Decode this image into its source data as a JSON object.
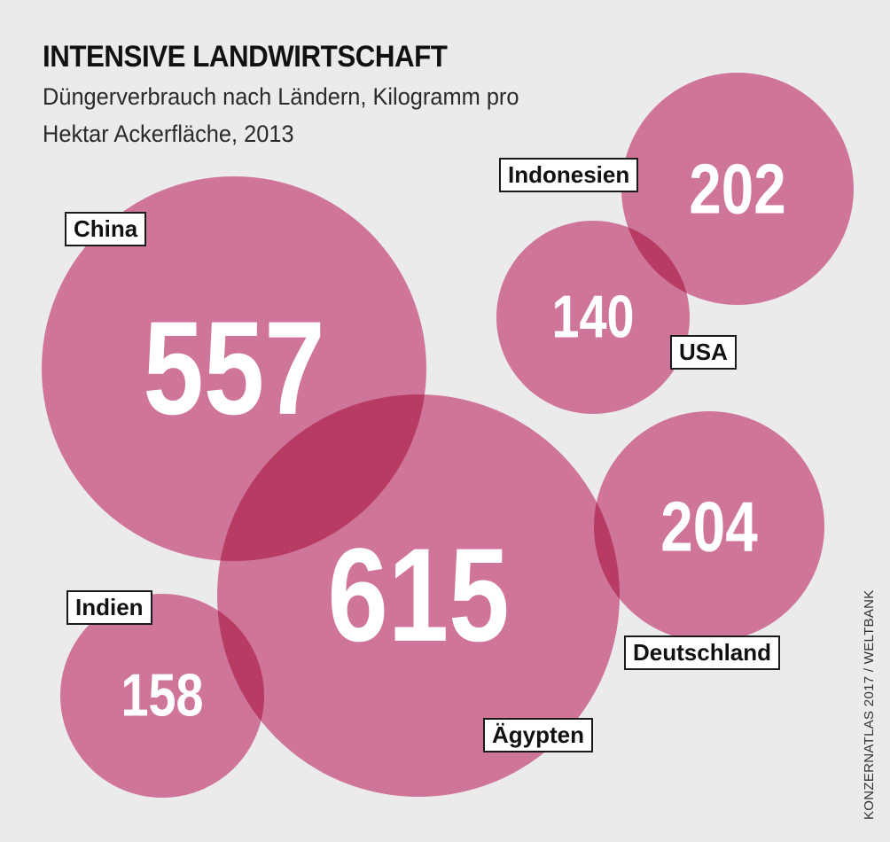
{
  "chart_data": {
    "type": "bubble",
    "title": "INTENSIVE LANDWIRTSCHAFT",
    "subtitle": "Düngerverbrauch nach Ländern, Kilogramm pro Hektar Ackerfläche, 2013",
    "unit": "kg/ha",
    "categories": [
      "China",
      "Ägypten",
      "Indonesien",
      "USA",
      "Deutschland",
      "Indien"
    ],
    "values": [
      557,
      615,
      202,
      140,
      204,
      158
    ],
    "points": [
      {
        "country": "China",
        "value": 557,
        "value_text": "557"
      },
      {
        "country": "Ägypten",
        "value": 615,
        "value_text": "615"
      },
      {
        "country": "Indonesien",
        "value": 202,
        "value_text": "202"
      },
      {
        "country": "USA",
        "value": 140,
        "value_text": "140"
      },
      {
        "country": "Deutschland",
        "value": 204,
        "value_text": "204"
      },
      {
        "country": "Indien",
        "value": 158,
        "value_text": "158"
      }
    ],
    "bubble_color": "#e27fa6",
    "legend": "none",
    "grid": false
  },
  "source": "KONZERNATLAS 2017 / WELTBANK",
  "colors": {
    "background": "#ebebec",
    "bubble": "#e27fa6",
    "value_text": "#ffffff",
    "label_border": "#1a1a1a"
  }
}
